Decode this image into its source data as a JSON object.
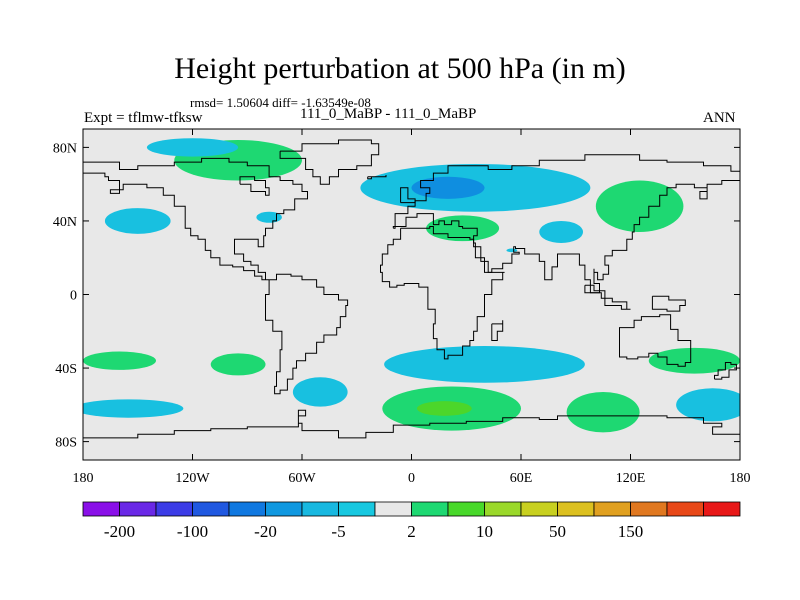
{
  "title": "Height perturbation at 500 hPa (in m)",
  "stats": "rmsd= 1.50604 diff= -1.63549e-08",
  "left_label": "Expt = tflmw-tfksw",
  "center_label": "111_0_MaBP - 111_0_MaBP",
  "right_label": "ANN",
  "colors": {
    "background": "#e8e8e8",
    "coastline": "#000000",
    "cyan": "#18c0e0",
    "blue": "#0f8ee0",
    "green": "#1ed872",
    "bright_green": "#4cd62a"
  },
  "x_axis": {
    "ticks": [
      -180,
      -120,
      -60,
      0,
      60,
      120,
      180
    ],
    "labels": [
      "180",
      "120W",
      "60W",
      "0",
      "60E",
      "120E",
      "180"
    ]
  },
  "y_axis": {
    "ticks": [
      80,
      40,
      0,
      -40,
      -80
    ],
    "labels": [
      "80N",
      "40N",
      "0",
      "40S",
      "80S"
    ]
  },
  "colorbar": {
    "colors": [
      "#8a10e8",
      "#6a28e6",
      "#3c3ce6",
      "#2058e0",
      "#1078e0",
      "#1098e0",
      "#18b8e0",
      "#18c8e0",
      "#e8e8e8",
      "#1ed872",
      "#48d82a",
      "#9ad82a",
      "#c8d020",
      "#dcc020",
      "#e0a020",
      "#e07820",
      "#e84818",
      "#e81818"
    ],
    "labels": [
      "-200",
      "-100",
      "-20",
      "-5",
      "2",
      "10",
      "50",
      "150"
    ]
  },
  "map_data": {
    "type": "contour_map",
    "variable": "Height perturbation at 500 hPa",
    "units": "m",
    "lon_range": [
      -180,
      180
    ],
    "lat_range": [
      -90,
      90
    ],
    "anomalies": [
      {
        "lon": -95,
        "lat": 73,
        "rx": 35,
        "ry": 11,
        "class": "green"
      },
      {
        "lon": -120,
        "lat": 80,
        "rx": 25,
        "ry": 5,
        "class": "cyan"
      },
      {
        "lon": 35,
        "lat": 58,
        "rx": 63,
        "ry": 13,
        "class": "cyan"
      },
      {
        "lon": 20,
        "lat": 58,
        "rx": 20,
        "ry": 6,
        "class": "blue"
      },
      {
        "lon": 125,
        "lat": 48,
        "rx": 24,
        "ry": 14,
        "class": "green"
      },
      {
        "lon": 28,
        "lat": 36,
        "rx": 20,
        "ry": 7,
        "class": "green"
      },
      {
        "lon": -150,
        "lat": 40,
        "rx": 18,
        "ry": 7,
        "class": "cyan"
      },
      {
        "lon": -78,
        "lat": 42,
        "rx": 7,
        "ry": 3,
        "class": "cyan"
      },
      {
        "lon": 82,
        "lat": 34,
        "rx": 12,
        "ry": 6,
        "class": "cyan"
      },
      {
        "lon": 55,
        "lat": 24,
        "rx": 3,
        "ry": 1,
        "class": "cyan"
      },
      {
        "lon": -160,
        "lat": -36,
        "rx": 20,
        "ry": 5,
        "class": "green"
      },
      {
        "lon": -95,
        "lat": -38,
        "rx": 15,
        "ry": 6,
        "class": "green"
      },
      {
        "lon": 155,
        "lat": -36,
        "rx": 25,
        "ry": 7,
        "class": "green"
      },
      {
        "lon": 40,
        "lat": -38,
        "rx": 55,
        "ry": 10,
        "class": "cyan"
      },
      {
        "lon": -50,
        "lat": -53,
        "rx": 15,
        "ry": 8,
        "class": "cyan"
      },
      {
        "lon": 22,
        "lat": -62,
        "rx": 38,
        "ry": 12,
        "class": "green"
      },
      {
        "lon": 18,
        "lat": -62,
        "rx": 15,
        "ry": 4,
        "class": "bright_green"
      },
      {
        "lon": 105,
        "lat": -64,
        "rx": 20,
        "ry": 11,
        "class": "green"
      },
      {
        "lon": 165,
        "lat": -60,
        "rx": 20,
        "ry": 9,
        "class": "cyan"
      },
      {
        "lon": -155,
        "lat": -62,
        "rx": 30,
        "ry": 5,
        "class": "cyan"
      }
    ]
  }
}
